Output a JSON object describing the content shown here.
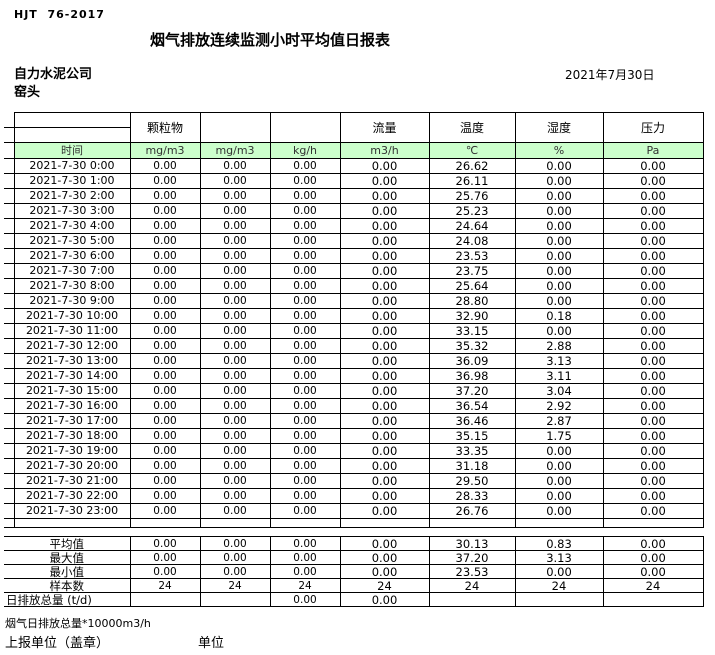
{
  "header": {
    "doc_code": "HJT  76-2017",
    "title": "烟气排放连续监测小时平均值日报表",
    "company": "自力水泥公司",
    "station": "窑头",
    "date": "2021年7月30日"
  },
  "table": {
    "time_header": "时间",
    "param_headers": [
      "颗粒物",
      "",
      "",
      "流量",
      "温度",
      "湿度",
      "压力"
    ],
    "units": [
      "mg/m3",
      "mg/m3",
      "kg/h",
      "m3/h",
      "℃",
      "%",
      "Pa"
    ],
    "rows": [
      {
        "time": "2021-7-30 0:00",
        "values": [
          "0.00",
          "0.00",
          "0.00",
          "0.00",
          "26.62",
          "0.00",
          "0.00"
        ]
      },
      {
        "time": "2021-7-30 1:00",
        "values": [
          "0.00",
          "0.00",
          "0.00",
          "0.00",
          "26.11",
          "0.00",
          "0.00"
        ]
      },
      {
        "time": "2021-7-30 2:00",
        "values": [
          "0.00",
          "0.00",
          "0.00",
          "0.00",
          "25.76",
          "0.00",
          "0.00"
        ]
      },
      {
        "time": "2021-7-30 3:00",
        "values": [
          "0.00",
          "0.00",
          "0.00",
          "0.00",
          "25.23",
          "0.00",
          "0.00"
        ]
      },
      {
        "time": "2021-7-30 4:00",
        "values": [
          "0.00",
          "0.00",
          "0.00",
          "0.00",
          "24.64",
          "0.00",
          "0.00"
        ]
      },
      {
        "time": "2021-7-30 5:00",
        "values": [
          "0.00",
          "0.00",
          "0.00",
          "0.00",
          "24.08",
          "0.00",
          "0.00"
        ]
      },
      {
        "time": "2021-7-30 6:00",
        "values": [
          "0.00",
          "0.00",
          "0.00",
          "0.00",
          "23.53",
          "0.00",
          "0.00"
        ]
      },
      {
        "time": "2021-7-30 7:00",
        "values": [
          "0.00",
          "0.00",
          "0.00",
          "0.00",
          "23.75",
          "0.00",
          "0.00"
        ]
      },
      {
        "time": "2021-7-30 8:00",
        "values": [
          "0.00",
          "0.00",
          "0.00",
          "0.00",
          "25.64",
          "0.00",
          "0.00"
        ]
      },
      {
        "time": "2021-7-30 9:00",
        "values": [
          "0.00",
          "0.00",
          "0.00",
          "0.00",
          "28.80",
          "0.00",
          "0.00"
        ]
      },
      {
        "time": "2021-7-30 10:00",
        "values": [
          "0.00",
          "0.00",
          "0.00",
          "0.00",
          "32.90",
          "0.18",
          "0.00"
        ]
      },
      {
        "time": "2021-7-30 11:00",
        "values": [
          "0.00",
          "0.00",
          "0.00",
          "0.00",
          "33.15",
          "0.00",
          "0.00"
        ]
      },
      {
        "time": "2021-7-30 12:00",
        "values": [
          "0.00",
          "0.00",
          "0.00",
          "0.00",
          "35.32",
          "2.88",
          "0.00"
        ]
      },
      {
        "time": "2021-7-30 13:00",
        "values": [
          "0.00",
          "0.00",
          "0.00",
          "0.00",
          "36.09",
          "3.13",
          "0.00"
        ]
      },
      {
        "time": "2021-7-30 14:00",
        "values": [
          "0.00",
          "0.00",
          "0.00",
          "0.00",
          "36.98",
          "3.11",
          "0.00"
        ]
      },
      {
        "time": "2021-7-30 15:00",
        "values": [
          "0.00",
          "0.00",
          "0.00",
          "0.00",
          "37.20",
          "3.04",
          "0.00"
        ]
      },
      {
        "time": "2021-7-30 16:00",
        "values": [
          "0.00",
          "0.00",
          "0.00",
          "0.00",
          "36.54",
          "2.92",
          "0.00"
        ]
      },
      {
        "time": "2021-7-30 17:00",
        "values": [
          "0.00",
          "0.00",
          "0.00",
          "0.00",
          "36.46",
          "2.87",
          "0.00"
        ]
      },
      {
        "time": "2021-7-30 18:00",
        "values": [
          "0.00",
          "0.00",
          "0.00",
          "0.00",
          "35.15",
          "1.75",
          "0.00"
        ]
      },
      {
        "time": "2021-7-30 19:00",
        "values": [
          "0.00",
          "0.00",
          "0.00",
          "0.00",
          "33.35",
          "0.00",
          "0.00"
        ]
      },
      {
        "time": "2021-7-30 20:00",
        "values": [
          "0.00",
          "0.00",
          "0.00",
          "0.00",
          "31.18",
          "0.00",
          "0.00"
        ]
      },
      {
        "time": "2021-7-30 21:00",
        "values": [
          "0.00",
          "0.00",
          "0.00",
          "0.00",
          "29.50",
          "0.00",
          "0.00"
        ]
      },
      {
        "time": "2021-7-30 22:00",
        "values": [
          "0.00",
          "0.00",
          "0.00",
          "0.00",
          "28.33",
          "0.00",
          "0.00"
        ]
      },
      {
        "time": "2021-7-30 23:00",
        "values": [
          "0.00",
          "0.00",
          "0.00",
          "0.00",
          "26.76",
          "0.00",
          "0.00"
        ]
      }
    ]
  },
  "summary": {
    "rows": [
      {
        "label": "平均值",
        "values": [
          "0.00",
          "0.00",
          "0.00",
          "0.00",
          "30.13",
          "0.83",
          "0.00"
        ]
      },
      {
        "label": "最大值",
        "values": [
          "0.00",
          "0.00",
          "0.00",
          "0.00",
          "37.20",
          "3.13",
          "0.00"
        ]
      },
      {
        "label": "最小值",
        "values": [
          "0.00",
          "0.00",
          "0.00",
          "0.00",
          "23.53",
          "0.00",
          "0.00"
        ]
      },
      {
        "label": "样本数",
        "values": [
          "24",
          "24",
          "24",
          "24",
          "24",
          "24",
          "24"
        ]
      },
      {
        "label": "日排放总量 (t/d)",
        "values": [
          "",
          "",
          "0.00",
          "0.00",
          "",
          "",
          ""
        ]
      }
    ]
  },
  "footer": {
    "note": "烟气日排放总量*10000m3/h",
    "report_unit_label": "上报单位（盖章）",
    "unit_label": "单位"
  },
  "colors": {
    "highlight_green": "#ccffcc"
  }
}
